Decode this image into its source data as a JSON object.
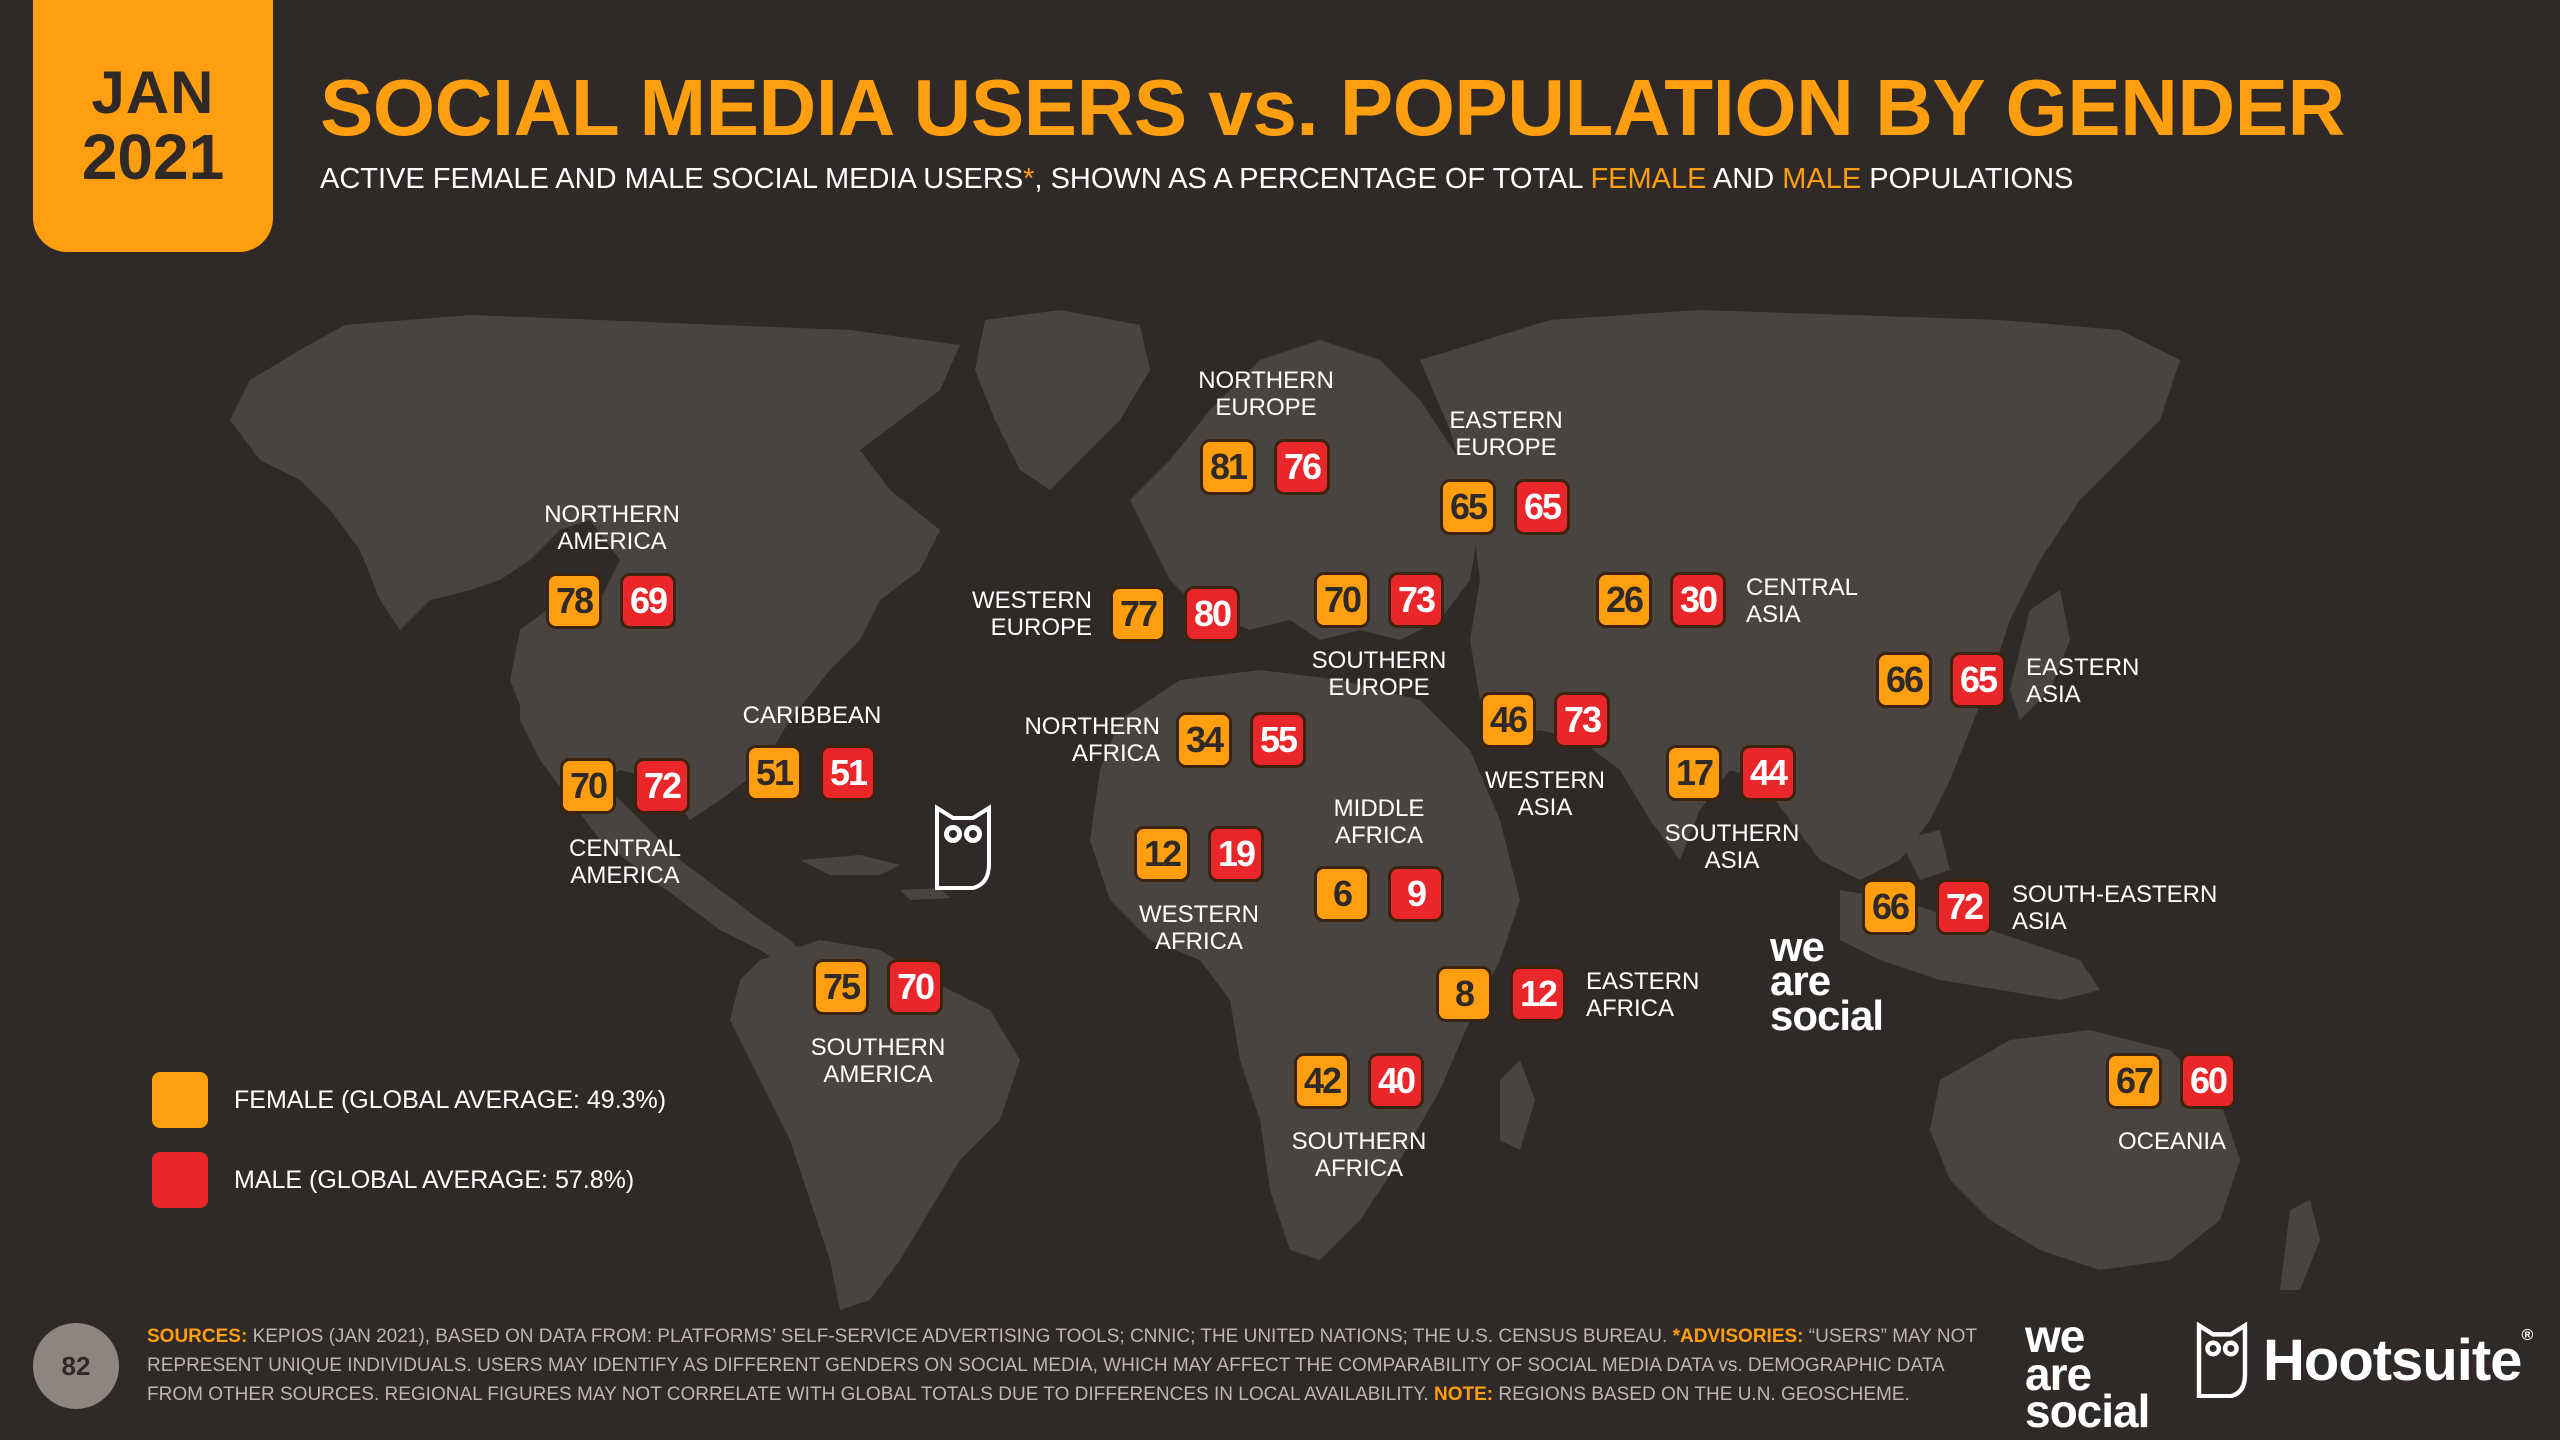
{
  "header": {
    "month": "JAN",
    "year": "2021",
    "title": "SOCIAL MEDIA USERS vs. POPULATION BY GENDER",
    "subtitle_part1": "ACTIVE FEMALE AND MALE SOCIAL MEDIA USERS",
    "subtitle_asterisk": "*",
    "subtitle_part2": ", SHOWN AS A PERCENTAGE OF TOTAL ",
    "subtitle_female": "FEMALE",
    "subtitle_and": " AND ",
    "subtitle_male": "MALE",
    "subtitle_end": " POPULATIONS"
  },
  "colors": {
    "background": "#2f2a27",
    "land": "#4a4440",
    "female": "#ff9e0f",
    "male": "#e9272b"
  },
  "regions": [
    {
      "key": "northern_america",
      "label": [
        "NORTHERN",
        "AMERICA"
      ],
      "female": 78,
      "male": 69
    },
    {
      "key": "central_america",
      "label": [
        "CENTRAL",
        "AMERICA"
      ],
      "female": 70,
      "male": 72
    },
    {
      "key": "caribbean",
      "label": [
        "CARIBBEAN"
      ],
      "female": 51,
      "male": 51
    },
    {
      "key": "southern_america",
      "label": [
        "SOUTHERN",
        "AMERICA"
      ],
      "female": 75,
      "male": 70
    },
    {
      "key": "northern_europe",
      "label": [
        "NORTHERN",
        "EUROPE"
      ],
      "female": 81,
      "male": 76
    },
    {
      "key": "western_europe",
      "label": [
        "WESTERN",
        "EUROPE"
      ],
      "female": 77,
      "male": 80
    },
    {
      "key": "southern_europe",
      "label": [
        "SOUTHERN",
        "EUROPE"
      ],
      "female": 70,
      "male": 73
    },
    {
      "key": "eastern_europe",
      "label": [
        "EASTERN",
        "EUROPE"
      ],
      "female": 65,
      "male": 65
    },
    {
      "key": "northern_africa",
      "label": [
        "NORTHERN",
        "AFRICA"
      ],
      "female": 34,
      "male": 55
    },
    {
      "key": "western_africa",
      "label": [
        "WESTERN",
        "AFRICA"
      ],
      "female": 12,
      "male": 19
    },
    {
      "key": "middle_africa",
      "label": [
        "MIDDLE",
        "AFRICA"
      ],
      "female": 6,
      "male": 9
    },
    {
      "key": "eastern_africa",
      "label": [
        "EASTERN",
        "AFRICA"
      ],
      "female": 8,
      "male": 12
    },
    {
      "key": "southern_africa",
      "label": [
        "SOUTHERN",
        "AFRICA"
      ],
      "female": 42,
      "male": 40
    },
    {
      "key": "western_asia",
      "label": [
        "WESTERN",
        "ASIA"
      ],
      "female": 46,
      "male": 73
    },
    {
      "key": "central_asia",
      "label": [
        "CENTRAL",
        "ASIA"
      ],
      "female": 26,
      "male": 30
    },
    {
      "key": "southern_asia",
      "label": [
        "SOUTHERN",
        "ASIA"
      ],
      "female": 17,
      "male": 44
    },
    {
      "key": "eastern_asia",
      "label": [
        "EASTERN",
        "ASIA"
      ],
      "female": 66,
      "male": 65
    },
    {
      "key": "south_eastern_asia",
      "label": [
        "SOUTH-EASTERN",
        "ASIA"
      ],
      "female": 66,
      "male": 72
    },
    {
      "key": "oceania",
      "label": [
        "OCEANIA"
      ],
      "female": 67,
      "male": 60
    }
  ],
  "legend": {
    "female": "FEMALE (GLOBAL AVERAGE: 49.3%)",
    "male": "MALE (GLOBAL AVERAGE: 57.8%)"
  },
  "footer": {
    "page_number": "82",
    "sources_key": "SOURCES:",
    "sources_text": " KEPIOS (JAN 2021), BASED ON DATA FROM: PLATFORMS’ SELF-SERVICE ADVERTISING TOOLS; CNNIC; THE UNITED NATIONS; THE U.S. CENSUS BUREAU. ",
    "advisories_key": "*ADVISORIES:",
    "advisories_text": " “USERS” MAY NOT REPRESENT UNIQUE INDIVIDUALS. USERS MAY IDENTIFY AS DIFFERENT GENDERS ON SOCIAL MEDIA, WHICH MAY AFFECT THE COMPARABILITY OF SOCIAL MEDIA DATA vs. DEMOGRAPHIC DATA FROM OTHER SOURCES. REGIONAL FIGURES MAY NOT CORRELATE WITH GLOBAL TOTALS DUE TO DIFFERENCES IN LOCAL AVAILABILITY. ",
    "note_key": "NOTE:",
    "note_text": " REGIONS BASED ON THE U.N. GEOSCHEME."
  },
  "logos": {
    "we_are_social": [
      "we",
      "are",
      "social"
    ],
    "hootsuite": "Hootsuite",
    "hootsuite_reg": "®",
    "owl_icon": "owl-icon"
  }
}
